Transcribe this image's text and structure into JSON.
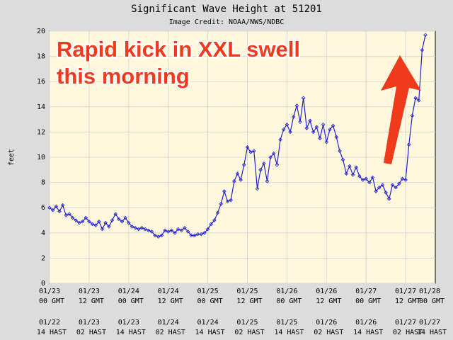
{
  "chart_data": {
    "type": "line",
    "title": "Significant Wave Height at 51201",
    "subtitle": "Image Credit: NOAA/NWS/NDBC",
    "y_label": "feet",
    "annotation": [
      "Rapid kick in XXL swell",
      "this morning"
    ],
    "color": "#2020d0",
    "grid": true,
    "xlim": [
      0,
      117
    ],
    "ylim": [
      0,
      20
    ],
    "yticks": [
      0,
      2,
      4,
      6,
      8,
      10,
      12,
      14,
      16,
      18,
      20
    ],
    "xticks": [
      {
        "value": 0,
        "label": "01/23 00 GMT"
      },
      {
        "value": 12,
        "label": "01/23 12 GMT"
      },
      {
        "value": 24,
        "label": "01/24 00 GMT"
      },
      {
        "value": 36,
        "label": "01/24 12 GMT"
      },
      {
        "value": 48,
        "label": "01/25 00 GMT"
      },
      {
        "value": 60,
        "label": "01/25 12 GMT"
      },
      {
        "value": 72,
        "label": "01/26 00 GMT"
      },
      {
        "value": 84,
        "label": "01/26 12 GMT"
      },
      {
        "value": 96,
        "label": "01/27 00 GMT"
      },
      {
        "value": 108,
        "label": "01/27 12 GMT"
      },
      {
        "value": 120,
        "label": "01/28 00 GMT"
      }
    ],
    "xticks_local": [
      {
        "value": 0,
        "label": "01/22 14 HAST"
      },
      {
        "value": 12,
        "label": "01/23 02 HAST"
      },
      {
        "value": 24,
        "label": "01/23 14 HAST"
      },
      {
        "value": 36,
        "label": "01/24 02 HAST"
      },
      {
        "value": 48,
        "label": "01/24 14 HAST"
      },
      {
        "value": 60,
        "label": "01/25 02 HAST"
      },
      {
        "value": 72,
        "label": "01/25 14 HAST"
      },
      {
        "value": 84,
        "label": "01/26 02 HAST"
      },
      {
        "value": 96,
        "label": "01/26 14 HAST"
      },
      {
        "value": 108,
        "label": "01/27 02 HAST"
      },
      {
        "value": 120,
        "label": "01/27 14 HAST"
      }
    ],
    "x": [
      0,
      1,
      2,
      3,
      4,
      5,
      6,
      7,
      8,
      9,
      10,
      11,
      12,
      13,
      14,
      15,
      16,
      17,
      18,
      19,
      20,
      21,
      22,
      23,
      24,
      25,
      26,
      27,
      28,
      29,
      30,
      31,
      32,
      33,
      34,
      35,
      36,
      37,
      38,
      39,
      40,
      41,
      42,
      43,
      44,
      45,
      46,
      47,
      48,
      49,
      50,
      51,
      52,
      53,
      54,
      55,
      56,
      57,
      58,
      59,
      60,
      61,
      62,
      63,
      64,
      65,
      66,
      67,
      68,
      69,
      70,
      71,
      72,
      73,
      74,
      75,
      76,
      77,
      78,
      79,
      80,
      81,
      82,
      83,
      84,
      85,
      86,
      87,
      88,
      89,
      90,
      91,
      92,
      93,
      94,
      95,
      96,
      97,
      98,
      99,
      100,
      101,
      102,
      103,
      104,
      105,
      106,
      107,
      108,
      109,
      110,
      111,
      112,
      113,
      114
    ],
    "values": [
      6.0,
      5.8,
      6.1,
      5.7,
      6.2,
      5.4,
      5.5,
      5.2,
      5.0,
      4.8,
      4.9,
      5.2,
      4.9,
      4.7,
      4.6,
      4.9,
      4.3,
      4.8,
      4.5,
      5.0,
      5.5,
      5.1,
      4.9,
      5.2,
      4.8,
      4.5,
      4.4,
      4.3,
      4.4,
      4.3,
      4.2,
      4.1,
      3.8,
      3.7,
      3.8,
      4.2,
      4.1,
      4.2,
      4.0,
      4.3,
      4.2,
      4.4,
      4.1,
      3.8,
      3.8,
      3.9,
      3.9,
      4.0,
      4.3,
      4.7,
      5.0,
      5.6,
      6.3,
      7.3,
      6.5,
      6.6,
      8.1,
      8.7,
      8.2,
      9.4,
      10.8,
      10.4,
      10.5,
      7.5,
      9.0,
      9.5,
      8.1,
      10.0,
      10.3,
      9.4,
      11.4,
      12.2,
      12.6,
      12.0,
      13.2,
      14.1,
      12.8,
      14.7,
      12.3,
      12.9,
      12.0,
      12.4,
      11.5,
      12.6,
      11.2,
      12.2,
      12.5,
      11.6,
      10.5,
      9.8,
      8.7,
      9.3,
      8.6,
      9.2,
      8.5,
      8.2,
      8.3,
      8.0,
      8.4,
      7.3,
      7.6,
      7.8,
      7.2,
      6.7,
      7.8,
      7.6,
      7.9,
      8.3,
      8.2,
      11.0,
      13.3,
      14.7,
      14.5,
      18.5,
      19.7
    ]
  }
}
